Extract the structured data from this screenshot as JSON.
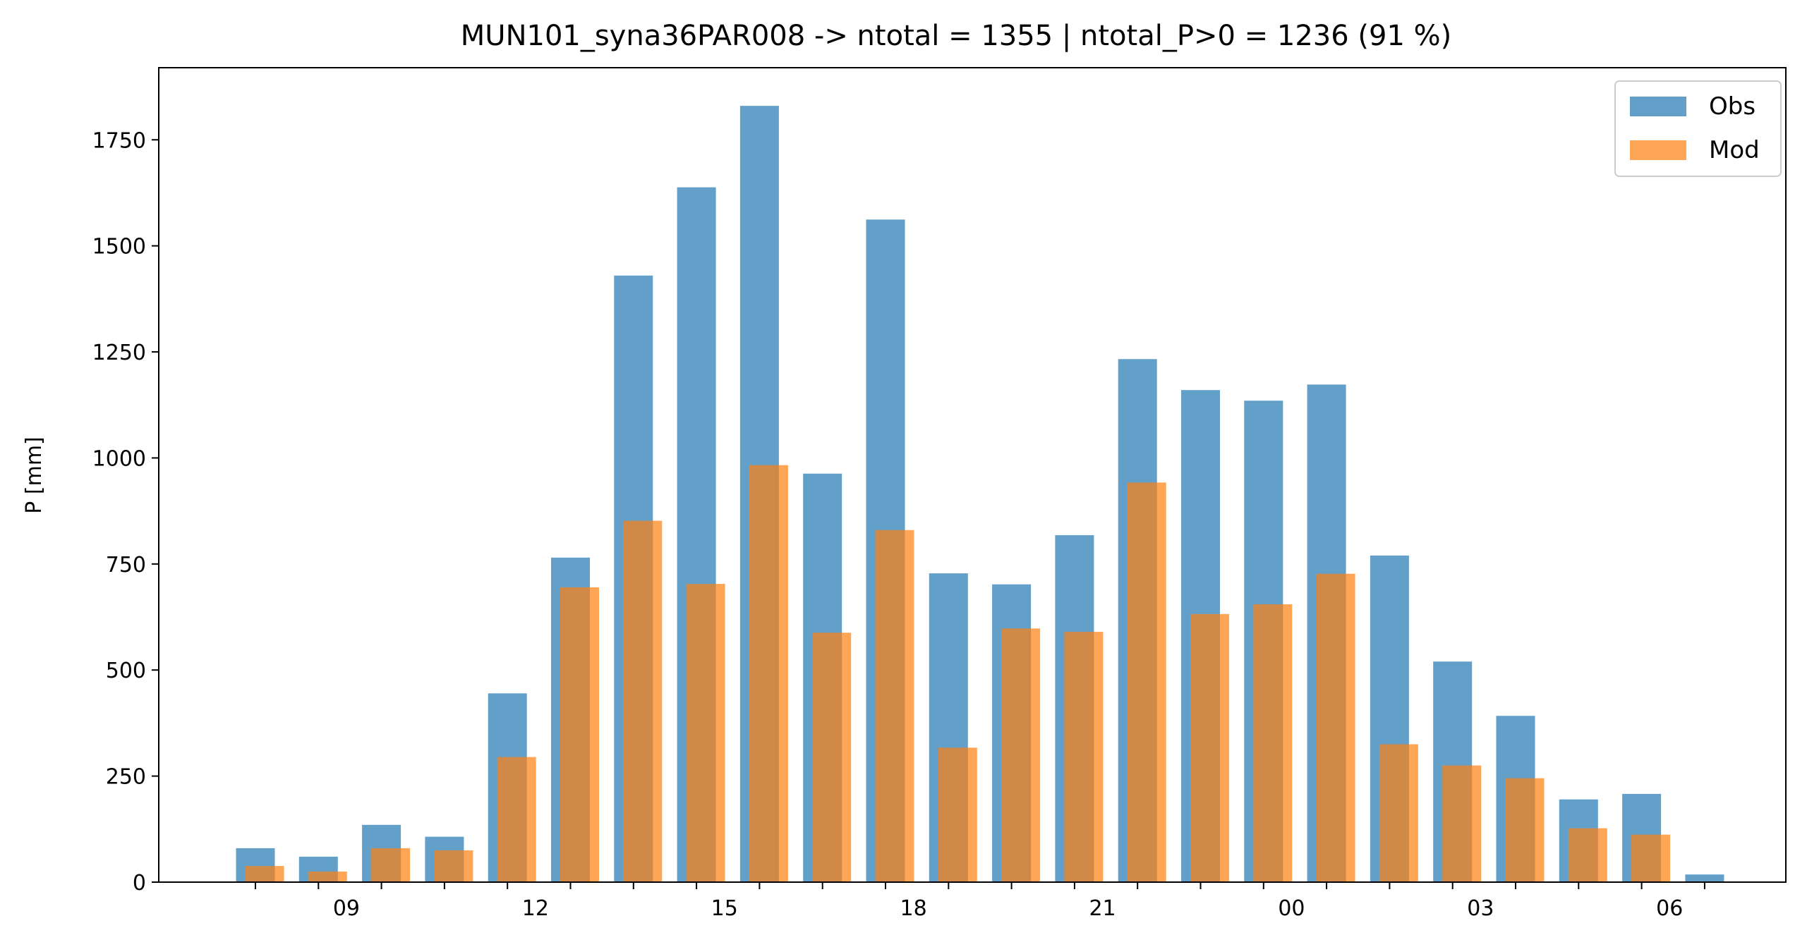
{
  "chart_data": {
    "type": "bar",
    "title": "MUN101_syna36PAR008 -> ntotal = 1355 | ntotal_P>0 = 1236 (91 %)",
    "xlabel": "",
    "ylabel": "P [mm]",
    "ylim": [
      0,
      1920
    ],
    "yticks": [
      0,
      250,
      500,
      750,
      1000,
      1250,
      1500,
      1750
    ],
    "hours": [
      8,
      9,
      10,
      11,
      12,
      13,
      14,
      15,
      16,
      17,
      18,
      19,
      20,
      21,
      22,
      23,
      0,
      1,
      2,
      3,
      4,
      5,
      6,
      7
    ],
    "xtick_labels": [
      "09",
      "12",
      "15",
      "18",
      "21",
      "00",
      "03",
      "06"
    ],
    "xtick_label_indices": [
      1,
      4,
      7,
      10,
      13,
      16,
      19,
      22
    ],
    "series": [
      {
        "name": "Obs",
        "color": "#1f77b4",
        "values": [
          80,
          60,
          135,
          107,
          445,
          765,
          1430,
          1638,
          1830,
          963,
          1562,
          728,
          702,
          818,
          1233,
          1160,
          1135,
          1173,
          770,
          520,
          392,
          195,
          208,
          18
        ]
      },
      {
        "name": "Mod",
        "color": "#ff7f0e",
        "values": [
          38,
          25,
          80,
          75,
          295,
          695,
          852,
          703,
          983,
          588,
          830,
          317,
          598,
          590,
          942,
          632,
          655,
          727,
          325,
          275,
          245,
          127,
          112,
          0
        ]
      }
    ],
    "legend_position": "upper right",
    "grid": false
  }
}
